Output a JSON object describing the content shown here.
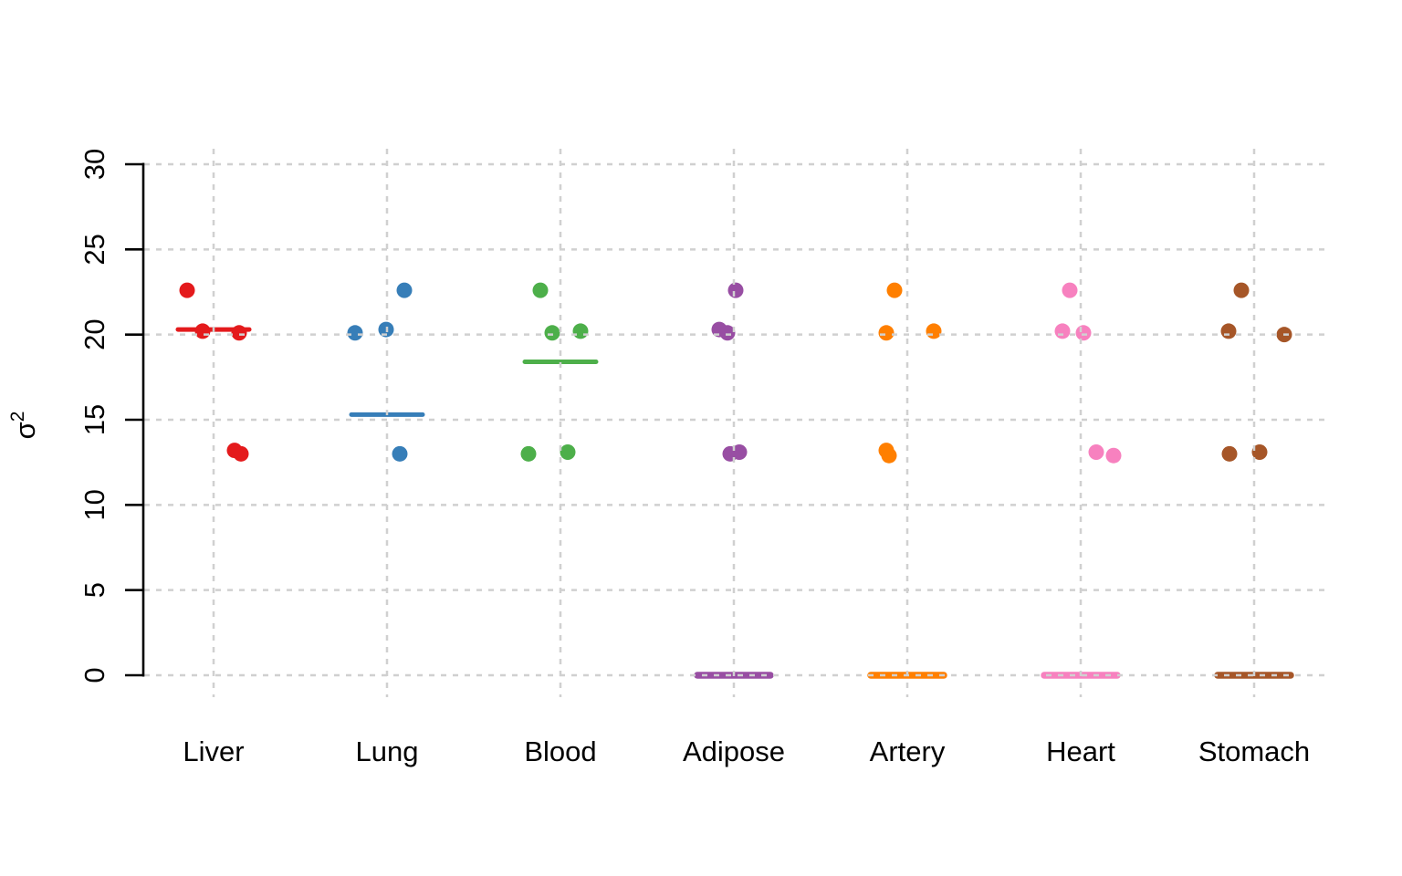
{
  "chart_data": {
    "type": "scatter",
    "subtype": "stripchart-with-mean-lines",
    "title": "",
    "xlabel": "",
    "ylabel_base": "σ",
    "ylabel_exponent": "2",
    "y_ticks": [
      0,
      5,
      10,
      15,
      20,
      25,
      30
    ],
    "ylim": [
      0,
      30
    ],
    "grid": true,
    "legend_position": "none",
    "background_color": "#ffffff",
    "grid_color": "#d0d0d0",
    "axis_color": "#000000",
    "categories": [
      {
        "label": "Liver",
        "color": "#e41a1c",
        "mean_line": 20.3,
        "points": [
          {
            "value": 22.6,
            "jitter": -29
          },
          {
            "value": 20.2,
            "jitter": -12
          },
          {
            "value": 20.1,
            "jitter": 28
          },
          {
            "value": 13.2,
            "jitter": 23
          },
          {
            "value": 13.0,
            "jitter": 30
          }
        ]
      },
      {
        "label": "Lung",
        "color": "#377eb8",
        "mean_line": 15.3,
        "points": [
          {
            "value": 22.6,
            "jitter": 19
          },
          {
            "value": 20.1,
            "jitter": -35
          },
          {
            "value": 20.3,
            "jitter": -1
          },
          {
            "value": 13.0,
            "jitter": 14
          }
        ]
      },
      {
        "label": "Blood",
        "color": "#4daf4a",
        "mean_line": 18.4,
        "points": [
          {
            "value": 22.6,
            "jitter": -22
          },
          {
            "value": 20.1,
            "jitter": -9
          },
          {
            "value": 20.2,
            "jitter": 22
          },
          {
            "value": 13.0,
            "jitter": -35
          },
          {
            "value": 13.1,
            "jitter": 8
          }
        ]
      },
      {
        "label": "Adipose",
        "color": "#984ea3",
        "mean_line": 0,
        "points": [
          {
            "value": 22.6,
            "jitter": 2
          },
          {
            "value": 20.3,
            "jitter": -16
          },
          {
            "value": 20.1,
            "jitter": -7
          },
          {
            "value": 13.0,
            "jitter": -4
          },
          {
            "value": 13.1,
            "jitter": 6
          }
        ]
      },
      {
        "label": "Artery",
        "color": "#ff7f00",
        "mean_line": 0,
        "points": [
          {
            "value": 22.6,
            "jitter": -14
          },
          {
            "value": 20.1,
            "jitter": -23
          },
          {
            "value": 20.2,
            "jitter": 29
          },
          {
            "value": 13.2,
            "jitter": -23
          },
          {
            "value": 12.9,
            "jitter": -20
          }
        ]
      },
      {
        "label": "Heart",
        "color": "#f781bf",
        "mean_line": 0,
        "points": [
          {
            "value": 22.6,
            "jitter": -12
          },
          {
            "value": 20.2,
            "jitter": -20
          },
          {
            "value": 20.1,
            "jitter": 3
          },
          {
            "value": 13.1,
            "jitter": 17
          },
          {
            "value": 12.9,
            "jitter": 36
          }
        ]
      },
      {
        "label": "Stomach",
        "color": "#a65628",
        "mean_line": 0,
        "points": [
          {
            "value": 22.6,
            "jitter": -14
          },
          {
            "value": 20.2,
            "jitter": -28
          },
          {
            "value": 20.0,
            "jitter": 33
          },
          {
            "value": 13.0,
            "jitter": -27
          },
          {
            "value": 13.1,
            "jitter": 6
          }
        ]
      }
    ]
  }
}
